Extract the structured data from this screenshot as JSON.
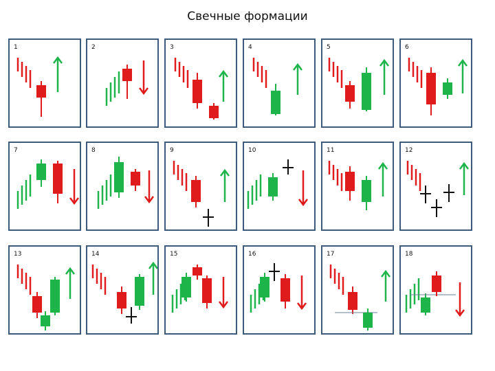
{
  "title": "Свечные формации",
  "colors": {
    "bear": "#e01b1b",
    "bull": "#1db54a",
    "doji": "#111111",
    "border": "#3c5a7a",
    "level": "#6b7f9a"
  },
  "patterns": [
    {
      "number": "1"
    },
    {
      "number": "2"
    },
    {
      "number": "3"
    },
    {
      "number": "4"
    },
    {
      "number": "5"
    },
    {
      "number": "6"
    },
    {
      "number": "7"
    },
    {
      "number": "8"
    },
    {
      "number": "9"
    },
    {
      "number": "10"
    },
    {
      "number": "11"
    },
    {
      "number": "12"
    },
    {
      "number": "13"
    },
    {
      "number": "14"
    },
    {
      "number": "15"
    },
    {
      "number": "16"
    },
    {
      "number": "17"
    },
    {
      "number": "18"
    }
  ]
}
